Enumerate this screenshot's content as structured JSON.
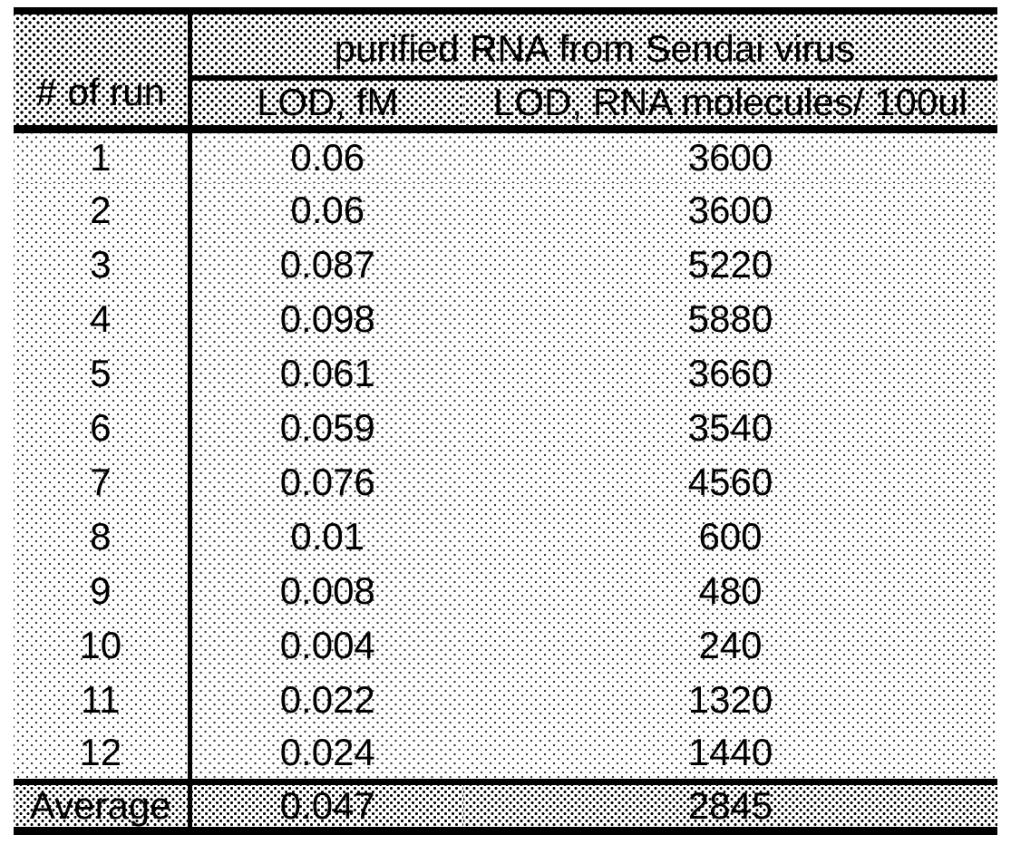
{
  "table": {
    "merged_header": "purified RNA from Sendai virus",
    "col_headers": {
      "run": "# of run",
      "lod_fm": "LOD, fM",
      "molecules": "LOD, RNA molecules/ 100ul"
    },
    "rows": [
      {
        "run": "1",
        "lod_fm": "0.06",
        "molecules": "3600"
      },
      {
        "run": "2",
        "lod_fm": "0.06",
        "molecules": "3600"
      },
      {
        "run": "3",
        "lod_fm": "0.087",
        "molecules": "5220"
      },
      {
        "run": "4",
        "lod_fm": "0.098",
        "molecules": "5880"
      },
      {
        "run": "5",
        "lod_fm": "0.061",
        "molecules": "3660"
      },
      {
        "run": "6",
        "lod_fm": "0.059",
        "molecules": "3540"
      },
      {
        "run": "7",
        "lod_fm": "0.076",
        "molecules": "4560"
      },
      {
        "run": "8",
        "lod_fm": "0.01",
        "molecules": "600"
      },
      {
        "run": "9",
        "lod_fm": "0.008",
        "molecules": "480"
      },
      {
        "run": "10",
        "lod_fm": "0.004",
        "molecules": "240"
      },
      {
        "run": "11",
        "lod_fm": "0.022",
        "molecules": "1320"
      },
      {
        "run": "12",
        "lod_fm": "0.024",
        "molecules": "1440"
      }
    ],
    "footer": {
      "label": "Average",
      "lod_fm": "0.047",
      "molecules": "2845"
    },
    "colors": {
      "border": "#000000",
      "text": "#000000",
      "page_background": "#ffffff"
    }
  }
}
